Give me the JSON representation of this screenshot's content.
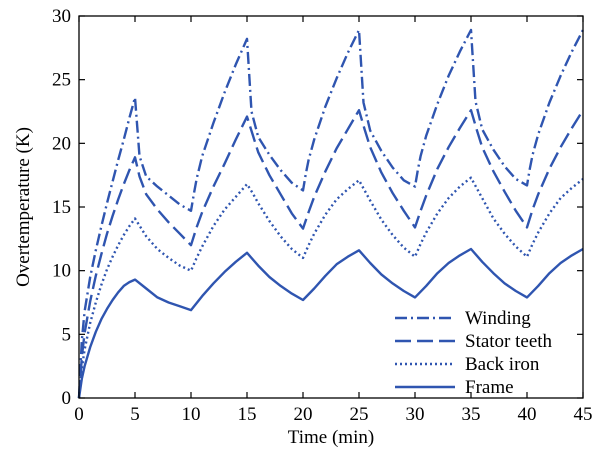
{
  "chart_data": {
    "type": "line",
    "title": "",
    "xlabel": "Time (min)",
    "ylabel": "Overtemperature (K)",
    "xlim": [
      0,
      45
    ],
    "ylim": [
      0,
      30
    ],
    "xticks": [
      "0",
      "5",
      "10",
      "15",
      "20",
      "25",
      "30",
      "35",
      "40",
      "45"
    ],
    "yticks": [
      "0",
      "5",
      "10",
      "15",
      "20",
      "25",
      "30"
    ],
    "grid": false,
    "legend_position": "bottom-right",
    "line_color": "#2f55b0",
    "series": [
      {
        "name": "Winding",
        "dash": "dash-dot",
        "x": [
          0,
          0.25,
          0.5,
          1,
          1.5,
          2,
          2.5,
          3,
          3.5,
          4,
          4.5,
          5,
          5.4,
          6,
          7,
          8,
          9,
          10,
          10.25,
          10.5,
          11,
          12,
          13,
          14,
          15,
          15.4,
          16,
          17,
          18,
          19,
          20,
          20.25,
          20.5,
          21,
          22,
          23,
          24,
          25,
          25.4,
          26,
          27,
          28,
          29,
          30,
          30.25,
          30.5,
          31,
          32,
          33,
          34,
          35,
          35.4,
          36,
          37,
          38,
          39,
          40,
          40.25,
          40.5,
          41,
          42,
          43,
          44,
          45
        ],
        "y": [
          0,
          4.5,
          6.8,
          9.5,
          11.6,
          13.5,
          15.3,
          17.0,
          18.7,
          20.3,
          22.0,
          23.6,
          19.0,
          17.4,
          16.6,
          15.9,
          15.2,
          14.7,
          16.0,
          17.2,
          19.0,
          21.6,
          24.0,
          26.2,
          28.2,
          22.5,
          20.5,
          19.1,
          17.9,
          16.9,
          16.3,
          17.6,
          18.7,
          20.3,
          22.9,
          25.1,
          27.1,
          28.9,
          23.2,
          21.0,
          19.4,
          18.1,
          17.1,
          16.6,
          17.9,
          19.0,
          20.6,
          23.1,
          25.3,
          27.2,
          28.9,
          23.3,
          21.1,
          19.5,
          18.2,
          17.2,
          16.7,
          18.0,
          19.1,
          20.7,
          23.2,
          25.3,
          27.2,
          28.9
        ]
      },
      {
        "name": "Stator teeth",
        "dash": "long-dash",
        "x": [
          0,
          0.25,
          0.5,
          1,
          1.5,
          2,
          2.5,
          3,
          3.5,
          4,
          4.5,
          5,
          5.4,
          6,
          7,
          8,
          9,
          10,
          10.5,
          11,
          12,
          13,
          14,
          15,
          15.5,
          16,
          17,
          18,
          19,
          20,
          20.5,
          21,
          22,
          23,
          24,
          25,
          25.5,
          26,
          27,
          28,
          29,
          30,
          30.5,
          31,
          32,
          33,
          34,
          35,
          35.5,
          36,
          37,
          38,
          39,
          40,
          40.5,
          41,
          42,
          43,
          44,
          45
        ],
        "y": [
          0,
          3.2,
          5.1,
          7.6,
          9.6,
          11.3,
          12.9,
          14.3,
          15.6,
          16.8,
          17.9,
          18.9,
          17.4,
          16.0,
          14.8,
          13.8,
          12.9,
          12.0,
          13.4,
          14.6,
          16.6,
          18.4,
          20.3,
          22.1,
          20.7,
          19.3,
          17.5,
          16.0,
          14.5,
          13.3,
          14.6,
          15.8,
          17.8,
          19.6,
          21.1,
          22.6,
          21.1,
          19.7,
          17.7,
          16.1,
          14.7,
          13.4,
          14.7,
          15.9,
          18.0,
          19.7,
          21.2,
          22.6,
          21.1,
          19.7,
          17.8,
          16.2,
          14.7,
          13.4,
          14.8,
          16.0,
          18.0,
          19.7,
          21.2,
          22.6
        ]
      },
      {
        "name": "Back iron",
        "dash": "dotted",
        "x": [
          0,
          0.25,
          0.5,
          1,
          1.5,
          2,
          2.5,
          3,
          3.5,
          4,
          4.5,
          5,
          5.5,
          6,
          7,
          8,
          9,
          10,
          10.5,
          11,
          12,
          13,
          14,
          15,
          15.5,
          16,
          17,
          18,
          19,
          20,
          20.5,
          21,
          22,
          23,
          24,
          25,
          25.5,
          26,
          27,
          28,
          29,
          30,
          30.5,
          31,
          32,
          33,
          34,
          35,
          35.5,
          36,
          37,
          38,
          39,
          40,
          40.5,
          41,
          42,
          43,
          44,
          45
        ],
        "y": [
          0,
          2.3,
          3.8,
          5.9,
          7.5,
          8.9,
          10.1,
          11.1,
          12.0,
          12.8,
          13.5,
          14.1,
          13.4,
          12.7,
          11.7,
          11.0,
          10.4,
          10.0,
          11.0,
          11.9,
          13.5,
          14.8,
          15.8,
          16.8,
          16.1,
          15.3,
          13.9,
          12.7,
          11.7,
          11.0,
          12.0,
          12.9,
          14.4,
          15.6,
          16.4,
          17.1,
          16.3,
          15.5,
          14.0,
          12.8,
          11.8,
          11.1,
          12.1,
          13.0,
          14.5,
          15.7,
          16.6,
          17.3,
          16.5,
          15.7,
          14.1,
          12.9,
          11.9,
          11.1,
          12.1,
          13.0,
          14.5,
          15.7,
          16.5,
          17.2
        ]
      },
      {
        "name": "Frame",
        "dash": "solid",
        "x": [
          0,
          0.25,
          0.5,
          1,
          1.5,
          2,
          2.5,
          3,
          3.5,
          4,
          4.5,
          5,
          6,
          7,
          8,
          9,
          10,
          11,
          12,
          13,
          14,
          15,
          16,
          17,
          18,
          19,
          20,
          21,
          22,
          23,
          24,
          25,
          26,
          27,
          28,
          29,
          30,
          31,
          32,
          33,
          34,
          35,
          36,
          37,
          38,
          39,
          40,
          41,
          42,
          43,
          44,
          45
        ],
        "y": [
          0,
          1.5,
          2.5,
          4.0,
          5.2,
          6.2,
          7.0,
          7.7,
          8.3,
          8.8,
          9.1,
          9.3,
          8.6,
          7.9,
          7.5,
          7.2,
          6.9,
          8.0,
          9.0,
          9.9,
          10.7,
          11.4,
          10.4,
          9.5,
          8.8,
          8.2,
          7.7,
          8.6,
          9.6,
          10.5,
          11.1,
          11.6,
          10.6,
          9.7,
          9.0,
          8.4,
          7.9,
          8.8,
          9.8,
          10.6,
          11.2,
          11.7,
          10.7,
          9.8,
          9.0,
          8.4,
          7.9,
          8.8,
          9.8,
          10.6,
          11.2,
          11.7
        ]
      }
    ]
  }
}
